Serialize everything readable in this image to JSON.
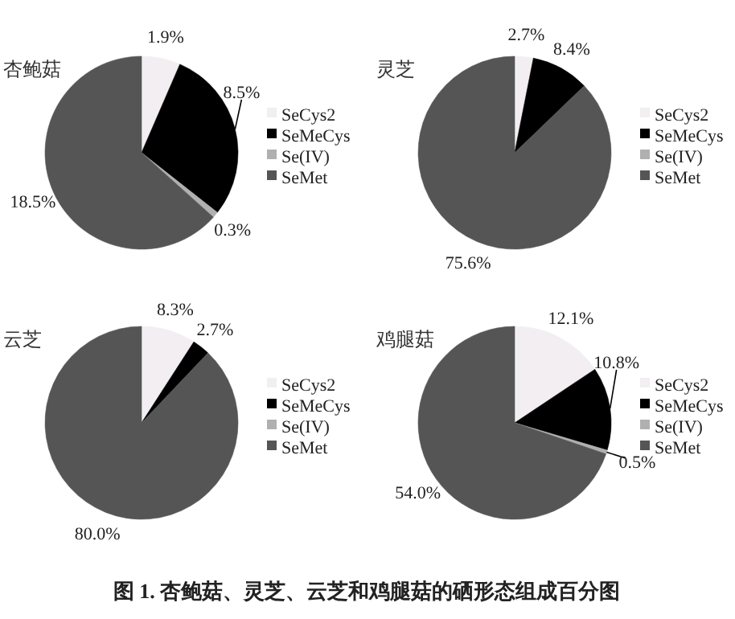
{
  "chart_data": [
    {
      "type": "pie",
      "title": "杏鲍菇",
      "categories": [
        "SeCys2",
        "SeMeCys",
        "Se(IV)",
        "SeMet"
      ],
      "values": [
        1.9,
        8.5,
        0.3,
        18.5
      ],
      "value_labels": [
        "1.9%",
        "8.5%",
        "0.3%",
        "18.5%"
      ],
      "colors": [
        "#f2eef2",
        "#000000",
        "#b0b0b0",
        "#555555"
      ],
      "legend": "right"
    },
    {
      "type": "pie",
      "title": "灵芝",
      "categories": [
        "SeCys2",
        "SeMeCys",
        "Se(IV)",
        "SeMet"
      ],
      "values": [
        2.7,
        8.4,
        0,
        75.6
      ],
      "value_labels": [
        "2.7%",
        "8.4%",
        null,
        "75.6%"
      ],
      "colors": [
        "#f2eef2",
        "#000000",
        "#b0b0b0",
        "#555555"
      ],
      "legend": "right"
    },
    {
      "type": "pie",
      "title": "云芝",
      "categories": [
        "SeCys2",
        "SeMeCys",
        "Se(IV)",
        "SeMet"
      ],
      "values": [
        8.3,
        2.7,
        0,
        80.0
      ],
      "value_labels": [
        "8.3%",
        "2.7%",
        null,
        "80.0%"
      ],
      "colors": [
        "#f2eef2",
        "#000000",
        "#b0b0b0",
        "#555555"
      ],
      "legend": "right"
    },
    {
      "type": "pie",
      "title": "鸡腿菇",
      "categories": [
        "SeCys2",
        "SeMeCys",
        "Se(IV)",
        "SeMet"
      ],
      "values": [
        12.1,
        10.8,
        0.5,
        54.0
      ],
      "value_labels": [
        "12.1%",
        "10.8%",
        "0.5%",
        "54.0%"
      ],
      "colors": [
        "#f2eef2",
        "#000000",
        "#b0b0b0",
        "#555555"
      ],
      "legend": "right",
      "annotations": [
        "图 1. 杏鲍菇、灵芝、云芝和鸡腿菇的硒形态组成百分图"
      ]
    }
  ]
}
